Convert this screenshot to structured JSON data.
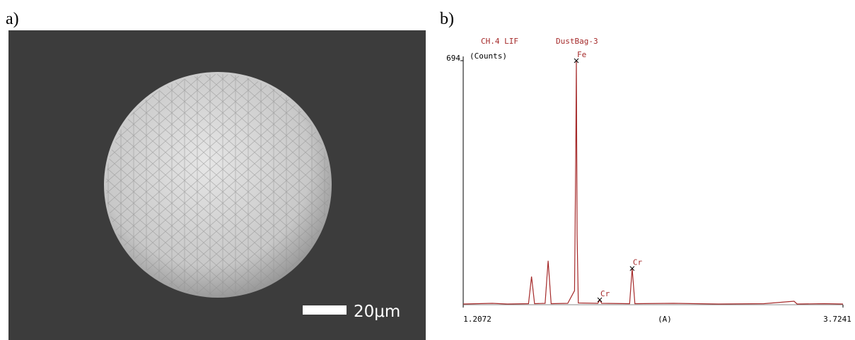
{
  "panel_labels": [
    "a)",
    "b)"
  ],
  "scale_bar_label": "20μm",
  "chart_data": {
    "type": "line",
    "title": "CH.4 LIF",
    "subtitle": "DustBag-3",
    "y_label": "(Counts)",
    "x_label": "(A)",
    "color": "#a52a2a",
    "x": [
      1.2072,
      1.4,
      1.5,
      1.64,
      1.66,
      1.68,
      1.75,
      1.77,
      1.79,
      1.9,
      1.945,
      1.953,
      1.957,
      1.962,
      1.97,
      2.1,
      2.112,
      2.125,
      2.31,
      2.327,
      2.345,
      2.6,
      2.9,
      3.2,
      3.4,
      3.42,
      3.6,
      3.7241
    ],
    "values": [
      2,
      4,
      2,
      3,
      80,
      3,
      4,
      125,
      3,
      4,
      40,
      420,
      694,
      200,
      5,
      4,
      14,
      4,
      3,
      103,
      3,
      4,
      2,
      3,
      10,
      2,
      3,
      2
    ],
    "xlim": [
      1.2072,
      3.7241
    ],
    "ylim": [
      0,
      694
    ],
    "xticks": [
      1.2072,
      3.7241
    ],
    "yticks": [
      694
    ],
    "peak_labels": [
      {
        "label": "Fe",
        "x": 1.957,
        "y": 694
      },
      {
        "label": "Cr",
        "x": 2.112,
        "y": 14
      },
      {
        "label": "Cr",
        "x": 2.327,
        "y": 103
      }
    ]
  }
}
